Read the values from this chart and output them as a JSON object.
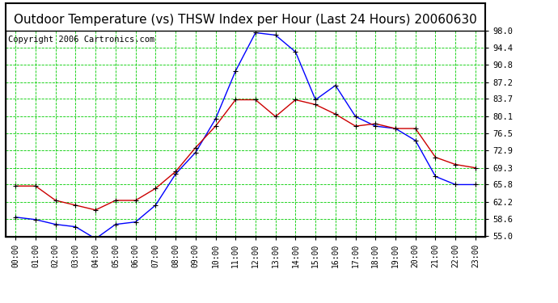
{
  "title": "Outdoor Temperature (vs) THSW Index per Hour (Last 24 Hours) 20060630",
  "copyright": "Copyright 2006 Cartronics.com",
  "hours": [
    "00:00",
    "01:00",
    "02:00",
    "03:00",
    "04:00",
    "05:00",
    "06:00",
    "07:00",
    "08:00",
    "09:00",
    "10:00",
    "11:00",
    "12:00",
    "13:00",
    "14:00",
    "15:00",
    "16:00",
    "17:00",
    "18:00",
    "19:00",
    "20:00",
    "21:00",
    "22:00",
    "23:00"
  ],
  "thsw_blue": [
    59.0,
    58.5,
    57.5,
    57.0,
    54.5,
    57.5,
    58.0,
    61.5,
    68.0,
    72.5,
    79.5,
    89.5,
    97.5,
    97.0,
    93.5,
    83.5,
    86.5,
    80.0,
    78.0,
    77.5,
    75.0,
    67.5,
    65.8,
    65.8
  ],
  "temp_red": [
    65.5,
    65.5,
    62.5,
    61.5,
    60.5,
    62.5,
    62.5,
    65.0,
    68.5,
    73.5,
    78.0,
    83.5,
    83.5,
    80.0,
    83.5,
    82.5,
    80.5,
    78.0,
    78.5,
    77.5,
    77.5,
    71.5,
    70.0,
    69.3
  ],
  "ylim": [
    55.0,
    98.0
  ],
  "yticks": [
    55.0,
    58.6,
    62.2,
    65.8,
    69.3,
    72.9,
    76.5,
    80.1,
    83.7,
    87.2,
    90.8,
    94.4,
    98.0
  ],
  "bg_color": "#ffffff",
  "plot_bg_color": "#ffffff",
  "grid_color": "#00cc00",
  "blue_color": "#0000ff",
  "red_color": "#cc0000",
  "title_fontsize": 11,
  "copyright_fontsize": 7.5
}
